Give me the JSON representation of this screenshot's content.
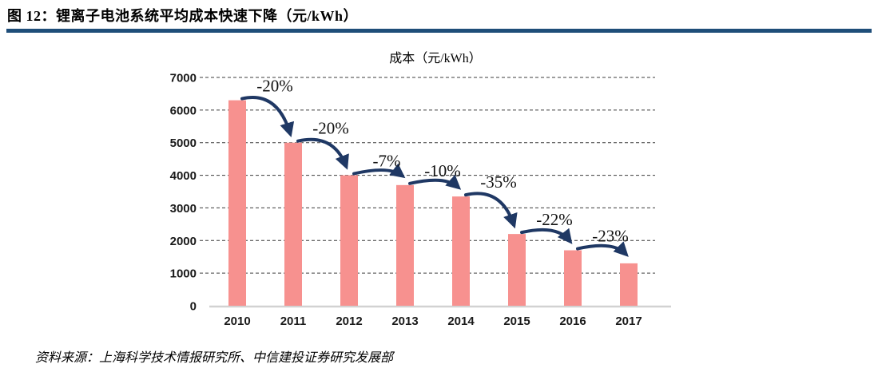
{
  "header": {
    "figure_label": "图 12：锂离子电池系统平均成本快速下降（元/kWh）"
  },
  "chart_data": {
    "type": "bar",
    "title": "成本（元/kWh）",
    "categories": [
      "2010",
      "2011",
      "2012",
      "2013",
      "2014",
      "2015",
      "2016",
      "2017"
    ],
    "values": [
      6300,
      5000,
      4000,
      3700,
      3350,
      2200,
      1700,
      1300
    ],
    "annotations": [
      "-20%",
      "-20%",
      "-7%",
      "-10%",
      "-35%",
      "-22%",
      "-23%"
    ],
    "xlabel": "",
    "ylabel": "",
    "ylim": [
      0,
      7000
    ],
    "ytick_step": 1000,
    "grid": "dashed-horizontal",
    "legend": "none",
    "bar_color": "#F7918F",
    "arrow_color": "#1F3864",
    "gridline_color": "#3d3d3d",
    "baseline_color": "#d2d2d2"
  },
  "source": {
    "text": "资料来源：上海科学技术情报研究所、中信建投证券研究发展部"
  },
  "colors": {
    "title_rule": "#1F4E79"
  }
}
